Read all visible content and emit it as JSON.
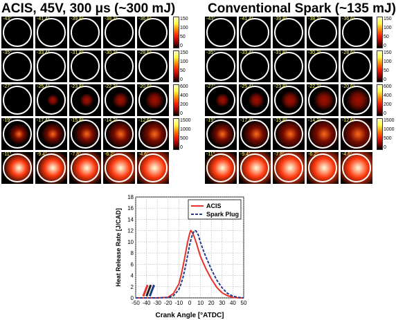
{
  "panels": {
    "left_title": "ACIS, 45V, 300 μs (~300 mJ)",
    "right_title": "Conventional Spark (~135 mJ)",
    "row_labels": [
      [
        "-43°",
        "-41.4°",
        "-39.8°",
        "-38.2°",
        "-36.6°"
      ],
      [
        "-35°",
        "-33.4°",
        "-31.8°",
        "-30.2°",
        "-28.6°"
      ],
      [
        "-27°",
        "-25.4°",
        "-23.8°",
        "-22.2°",
        "-20.6°"
      ],
      [
        "-19°",
        "-17.4°",
        "-15.8°",
        "-14.2°",
        "-12.6°"
      ],
      [
        "-11°",
        "-9.4°",
        "-7.8°",
        "-6.2°",
        "-4.6°"
      ]
    ],
    "colorbars": [
      {
        "ticks": [
          "150",
          "100",
          "50",
          "0"
        ]
      },
      {
        "ticks": [
          "150",
          "100",
          "50",
          "0"
        ]
      },
      {
        "ticks": [
          "600",
          "400",
          "200",
          "0"
        ]
      },
      {
        "ticks": [
          "1500",
          "1000",
          "500",
          "0"
        ]
      }
    ],
    "colors": {
      "bg": "#000000",
      "ring": "#ffffff",
      "label": "#ffff66"
    }
  },
  "chart_data": {
    "type": "line",
    "xlabel": "Crank Angle [°ATDC]",
    "ylabel": "Heat Release Rate [J/CAD]",
    "xlim": [
      -50,
      50
    ],
    "ylim": [
      0,
      18
    ],
    "xticks": [
      -50,
      -40,
      -30,
      -20,
      -10,
      0,
      10,
      20,
      30,
      40,
      50
    ],
    "yticks": [
      0,
      2,
      4,
      6,
      8,
      10,
      12,
      14,
      16,
      18
    ],
    "grid": true,
    "legend": "top-right",
    "series": [
      {
        "name": "ACIS",
        "color": "#e8302a",
        "dash": "solid",
        "x": [
          -50,
          -30,
          -20,
          -15,
          -10,
          -8,
          -6,
          -4,
          -2,
          0,
          1,
          2,
          4,
          6,
          8,
          10,
          12,
          15,
          18,
          20,
          25,
          30,
          35,
          40,
          45,
          50
        ],
        "y": [
          0,
          0,
          0.1,
          0.8,
          2.5,
          4.0,
          5.8,
          7.8,
          9.9,
          11.5,
          12.0,
          11.8,
          11.0,
          9.9,
          8.6,
          7.4,
          6.5,
          5.2,
          4.1,
          3.4,
          1.9,
          0.9,
          0.4,
          0.1,
          0,
          0
        ]
      },
      {
        "name": "Spark Plug",
        "color": "#1f3a8a",
        "dash": "dashed",
        "x": [
          -50,
          -30,
          -20,
          -15,
          -10,
          -8,
          -6,
          -4,
          -2,
          0,
          2,
          4,
          5,
          6,
          8,
          10,
          12,
          15,
          18,
          20,
          25,
          30,
          35,
          40,
          45,
          50
        ],
        "y": [
          0,
          0,
          0.05,
          0.4,
          1.5,
          2.5,
          3.8,
          5.5,
          7.5,
          9.5,
          11.0,
          11.9,
          12.0,
          11.9,
          11.2,
          9.9,
          8.8,
          7.3,
          6.0,
          5.1,
          3.2,
          1.8,
          0.8,
          0.3,
          0.1,
          0
        ]
      }
    ],
    "marker_colors": [
      "#e8302a",
      "#222222",
      "#1f3a8a"
    ]
  }
}
